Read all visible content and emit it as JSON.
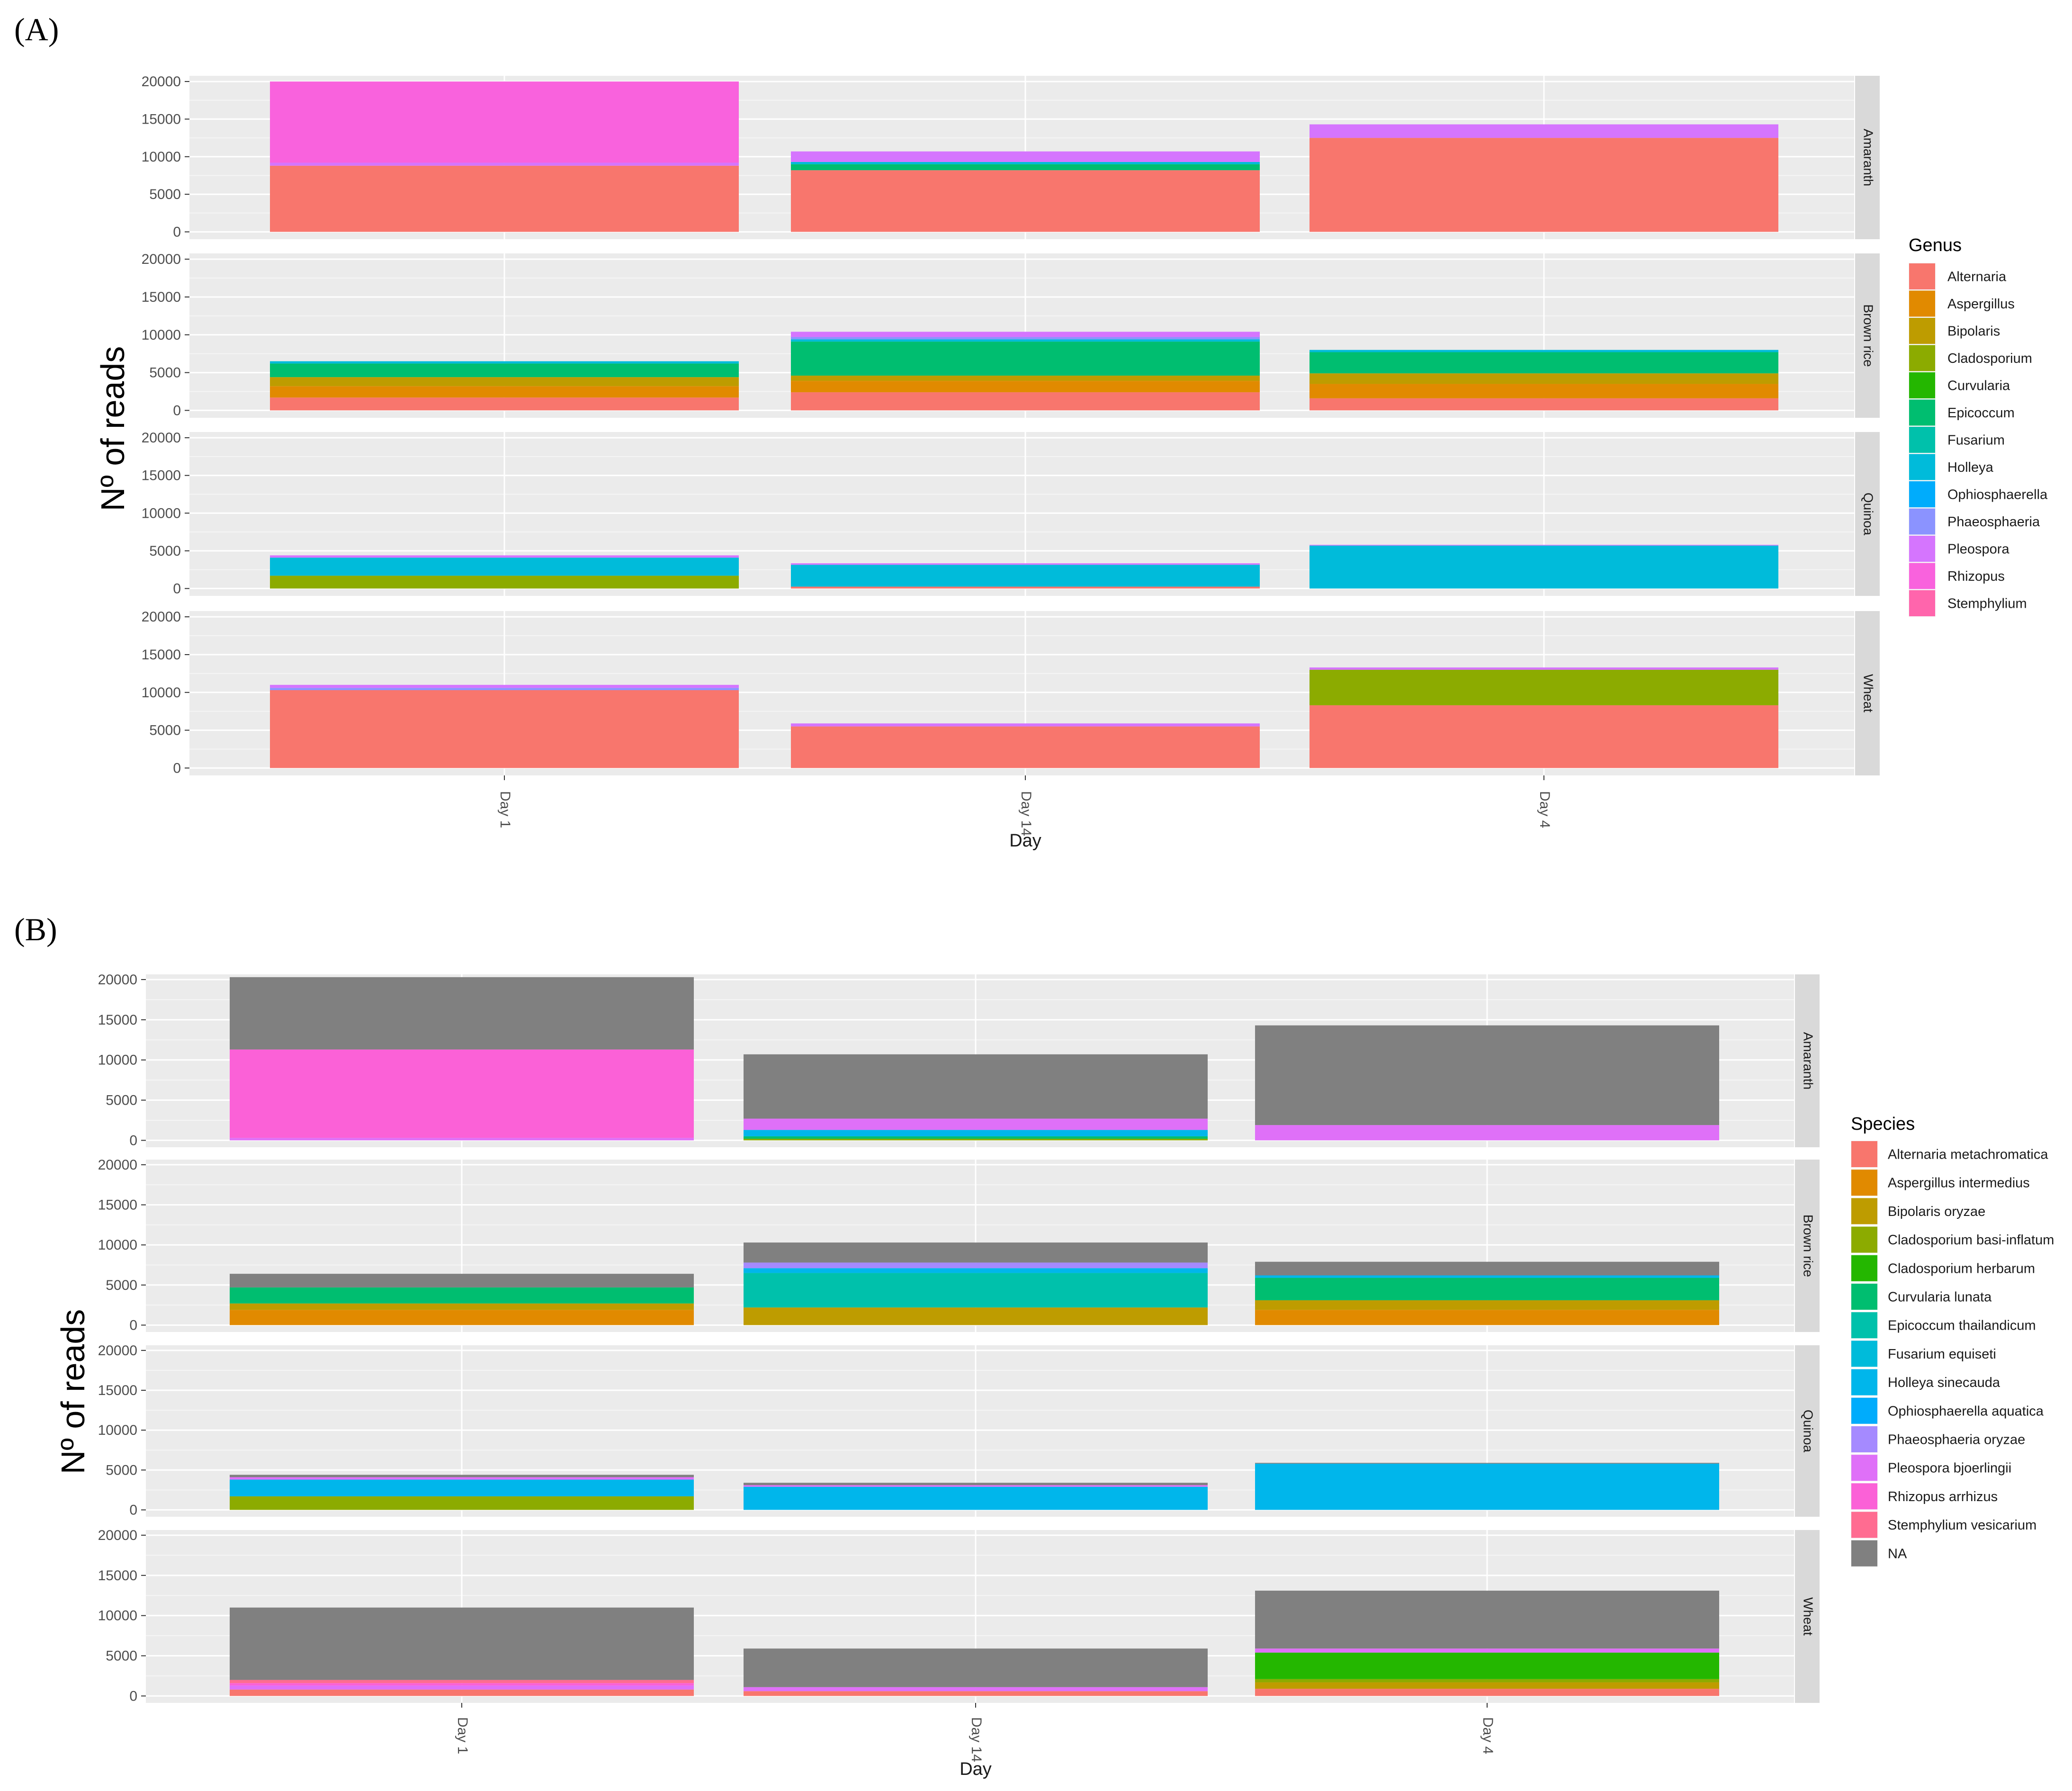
{
  "panels": [
    {
      "label": "A",
      "ylabel": "Nº of reads",
      "xlabel": "Day",
      "legend_title": "Genus",
      "legend_position": "right",
      "facets": [
        "Amaranth",
        "Brown rice",
        "Quinoa",
        "Wheat"
      ],
      "categories": [
        "Day 1",
        "Day 14",
        "Day 4"
      ],
      "y_ticks": [
        "0",
        "5000",
        "10000",
        "15000",
        "20000"
      ]
    },
    {
      "label": "B",
      "ylabel": "Nº of reads",
      "xlabel": "Day",
      "legend_title": "Species",
      "legend_position": "right",
      "facets": [
        "Amaranth",
        "Brown rice",
        "Quinoa",
        "Wheat"
      ],
      "categories": [
        "Day 1",
        "Day 14",
        "Day 4"
      ],
      "y_ticks": [
        "0",
        "5000",
        "10000",
        "15000",
        "20000"
      ]
    }
  ],
  "chart_data": [
    {
      "type": "bar",
      "stacked": true,
      "facet_by": "Sample",
      "ylim": [
        0,
        20000
      ],
      "grid": true,
      "series": [
        {
          "name": "Alternaria",
          "color": "#F8766D"
        },
        {
          "name": "Aspergillus",
          "color": "#E18A00"
        },
        {
          "name": "Bipolaris",
          "color": "#BE9C00"
        },
        {
          "name": "Cladosporium",
          "color": "#8CAB00"
        },
        {
          "name": "Curvularia",
          "color": "#24B700"
        },
        {
          "name": "Epicoccum",
          "color": "#00BE70"
        },
        {
          "name": "Fusarium",
          "color": "#00C1AB"
        },
        {
          "name": "Holleya",
          "color": "#00BBDA"
        },
        {
          "name": "Ophiosphaerella",
          "color": "#00ACFC"
        },
        {
          "name": "Phaeosphaeria",
          "color": "#8B93FF"
        },
        {
          "name": "Pleospora",
          "color": "#D575FE"
        },
        {
          "name": "Rhizopus",
          "color": "#F962DD"
        },
        {
          "name": "Stemphylium",
          "color": "#FF65AC"
        }
      ],
      "data": {
        "Amaranth": {
          "Day 1": {
            "Rhizopus": 10800,
            "Pleospora": 400,
            "Alternaria": 8800
          },
          "Day 14": {
            "Pleospora": 1400,
            "Holleya": 300,
            "Epicoccum": 800,
            "Alternaria": 8200
          },
          "Day 4": {
            "Pleospora": 1800,
            "Alternaria": 12500
          }
        },
        "Brown rice": {
          "Day 1": {
            "Holleya": 300,
            "Epicoccum": 1800,
            "Bipolaris": 1200,
            "Aspergillus": 1500,
            "Alternaria": 1700
          },
          "Day 14": {
            "Pleospora": 700,
            "Phaeosphaeria": 300,
            "Holleya": 300,
            "Epicoccum": 4500,
            "Bipolaris": 700,
            "Aspergillus": 1500,
            "Alternaria": 2400
          },
          "Day 4": {
            "Holleya": 300,
            "Epicoccum": 2800,
            "Bipolaris": 1400,
            "Aspergillus": 1900,
            "Alternaria": 1600
          }
        },
        "Quinoa": {
          "Day 1": {
            "Pleospora": 300,
            "Holleya": 2400,
            "Cladosporium": 1700
          },
          "Day 14": {
            "Pleospora": 200,
            "Holleya": 2900,
            "Alternaria": 250
          },
          "Day 4": {
            "Pleospora": 100,
            "Holleya": 5700
          }
        },
        "Wheat": {
          "Day 1": {
            "Pleospora": 400,
            "Phaeosphaeria": 300,
            "Alternaria": 10300
          },
          "Day 14": {
            "Pleospora": 400,
            "Alternaria": 5500
          },
          "Day 4": {
            "Pleospora": 300,
            "Cladosporium": 4700,
            "Alternaria": 8300
          }
        }
      }
    },
    {
      "type": "bar",
      "stacked": true,
      "facet_by": "Sample",
      "ylim": [
        0,
        20000
      ],
      "grid": true,
      "series": [
        {
          "name": "Alternaria metachromatica",
          "color": "#F8766D"
        },
        {
          "name": "Aspergillus intermedius",
          "color": "#E18A00"
        },
        {
          "name": "Bipolaris oryzae",
          "color": "#BE9C00"
        },
        {
          "name": "Cladosporium basi-inflatum",
          "color": "#8CAB00"
        },
        {
          "name": "Cladosporium herbarum",
          "color": "#24B700"
        },
        {
          "name": "Curvularia lunata",
          "color": "#00BE70"
        },
        {
          "name": "Epicoccum thailandicum",
          "color": "#00C1AB"
        },
        {
          "name": "Fusarium equiseti",
          "color": "#00BBDA"
        },
        {
          "name": "Holleya sinecauda",
          "color": "#00B6EB"
        },
        {
          "name": "Ophiosphaerella aquatica",
          "color": "#00ACFC"
        },
        {
          "name": "Phaeosphaeria oryzae",
          "color": "#A58AFF"
        },
        {
          "name": "Pleospora bjoerlingii",
          "color": "#DF70F8"
        },
        {
          "name": "Rhizopus arrhizus",
          "color": "#FB61D7"
        },
        {
          "name": "Stemphylium vesicarium",
          "color": "#FF6C91"
        },
        {
          "name": "NA",
          "color": "#808080"
        }
      ],
      "data": {
        "Amaranth": {
          "Day 1": {
            "NA": 9000,
            "Rhizopus arrhizus": 11000,
            "Pleospora bjoerlingii": 300
          },
          "Day 14": {
            "NA": 8000,
            "Pleospora bjoerlingii": 1400,
            "Holleya sinecauda": 800,
            "Curvularia lunata": 300,
            "Cladosporium basi-inflatum": 200
          },
          "Day 4": {
            "NA": 12400,
            "Pleospora bjoerlingii": 1900
          }
        },
        "Brown rice": {
          "Day 1": {
            "NA": 1700,
            "Curvularia lunata": 2000,
            "Bipolaris oryzae": 800,
            "Aspergillus intermedius": 1900
          },
          "Day 14": {
            "NA": 2500,
            "Phaeosphaeria oryzae": 700,
            "Holleya sinecauda": 600,
            "Epicoccum thailandicum": 4300,
            "Bipolaris oryzae": 2200
          },
          "Day 4": {
            "NA": 1700,
            "Holleya sinecauda": 300,
            "Curvularia lunata": 2800,
            "Bipolaris oryzae": 1200,
            "Aspergillus intermedius": 1900
          }
        },
        "Quinoa": {
          "Day 1": {
            "NA": 300,
            "Pleospora bjoerlingii": 300,
            "Holleya sinecauda": 2100,
            "Cladosporium basi-inflatum": 1700
          },
          "Day 14": {
            "NA": 300,
            "Pleospora bjoerlingii": 200,
            "Holleya sinecauda": 2900
          },
          "Day 4": {
            "NA": 100,
            "Holleya sinecauda": 5800
          }
        },
        "Wheat": {
          "Day 1": {
            "NA": 9000,
            "Stemphylium vesicarium": 400,
            "Pleospora bjoerlingii": 500,
            "Rhizopus arrhizus": 300,
            "Alternaria metachromatica": 800
          },
          "Day 14": {
            "NA": 4800,
            "Pleospora bjoerlingii": 500,
            "Alternaria metachromatica": 600
          },
          "Day 4": {
            "NA": 7200,
            "Pleospora bjoerlingii": 500,
            "Cladosporium herbarum": 3300,
            "Bipolaris oryzae": 800,
            "Cladosporium basi-inflatum": 400,
            "Alternaria metachromatica": 900
          }
        }
      }
    }
  ]
}
